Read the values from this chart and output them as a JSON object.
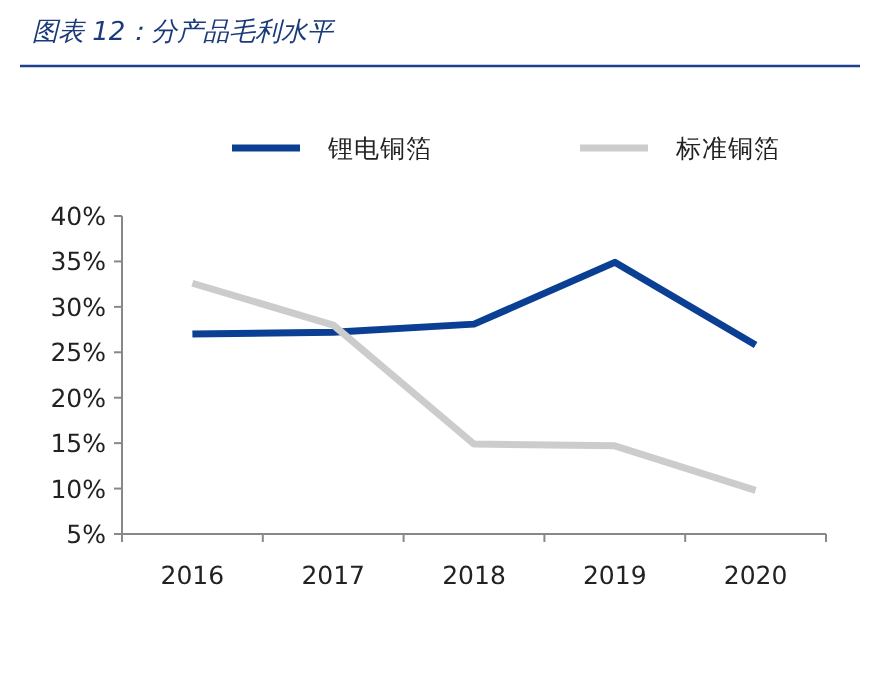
{
  "chart_data": {
    "type": "line",
    "title": "图表 12：分产品毛利水平",
    "categories": [
      "2016",
      "2017",
      "2018",
      "2019",
      "2020"
    ],
    "series": [
      {
        "name": "锂电铜箔",
        "color": "#0b3f94",
        "values": [
          27.0,
          27.2,
          28.1,
          34.9,
          25.8
        ]
      },
      {
        "name": "标准铜箔",
        "color": "#cccccc",
        "values": [
          32.6,
          28.0,
          14.9,
          14.7,
          9.8
        ]
      }
    ],
    "ylim": [
      5,
      40
    ],
    "yticks": [
      {
        "value": 5,
        "label": "5%"
      },
      {
        "value": 10,
        "label": "10%"
      },
      {
        "value": 15,
        "label": "15%"
      },
      {
        "value": 20,
        "label": "20%"
      },
      {
        "value": 25,
        "label": "25%"
      },
      {
        "value": 30,
        "label": "30%"
      },
      {
        "value": 35,
        "label": "35%"
      },
      {
        "value": 40,
        "label": "40%"
      }
    ],
    "grid": false,
    "legend": "top"
  }
}
